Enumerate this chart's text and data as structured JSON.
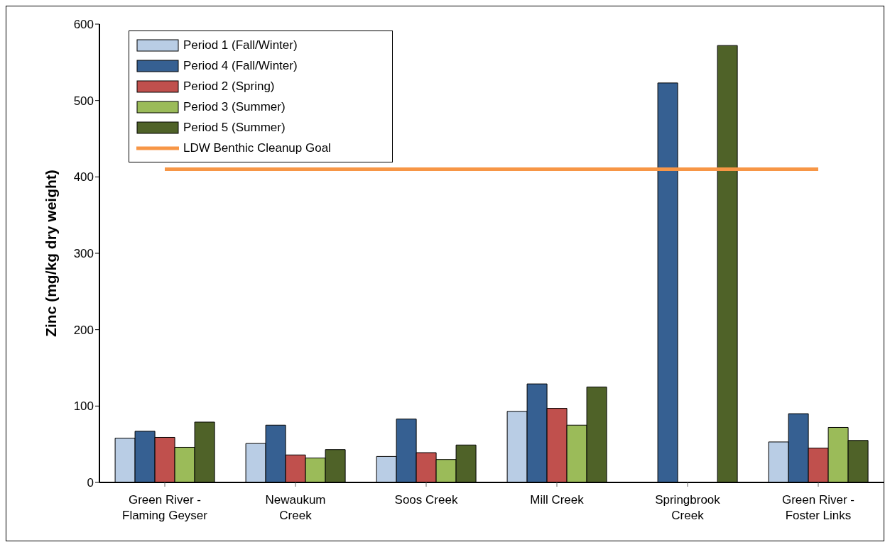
{
  "chart_data": {
    "type": "bar",
    "ylabel": "Zinc (mg/kg dry weight)",
    "categories": [
      "Green River - Flaming Geyser",
      "Newaukum Creek",
      "Soos Creek",
      "Mill Creek",
      "Springbrook Creek",
      "Green River - Foster Links"
    ],
    "series": [
      {
        "name": "Period 1 (Fall/Winter)",
        "color": "#b9cde5",
        "values": [
          58,
          51,
          34,
          93,
          null,
          53
        ]
      },
      {
        "name": "Period 4 (Fall/Winter)",
        "color": "#366092",
        "values": [
          67,
          75,
          83,
          129,
          523,
          90
        ]
      },
      {
        "name": "Period 2 (Spring)",
        "color": "#c0504d",
        "values": [
          59,
          36,
          39,
          97,
          null,
          45
        ]
      },
      {
        "name": "Period 3 (Summer)",
        "color": "#9bbb59",
        "values": [
          46,
          32,
          30,
          75,
          null,
          72
        ]
      },
      {
        "name": "Period 5 (Summer)",
        "color": "#4f6228",
        "values": [
          79,
          43,
          49,
          125,
          572,
          55
        ]
      },
      {
        "name": "LDW Benthic Cleanup Goal",
        "color": "#f79646",
        "type": "line",
        "values": [
          410,
          410,
          410,
          410,
          410,
          410
        ]
      }
    ],
    "ylim": [
      0,
      600
    ],
    "yticks": [
      0,
      100,
      200,
      300,
      400,
      500,
      600
    ],
    "grid": false,
    "legend": "top left",
    "marker": "none"
  }
}
